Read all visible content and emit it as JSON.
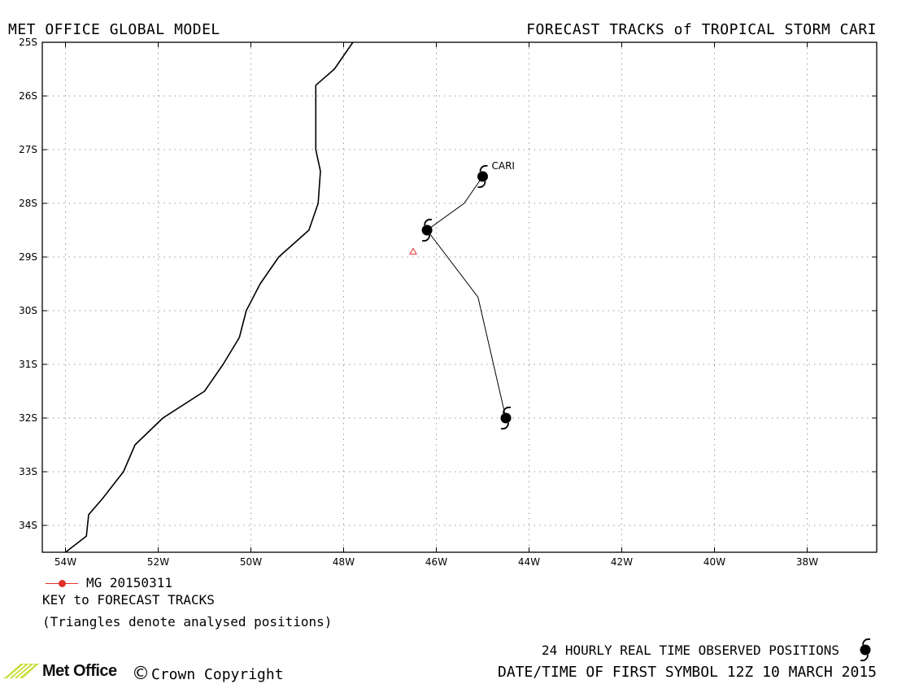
{
  "header": {
    "left": "MET OFFICE GLOBAL MODEL",
    "right": "FORECAST TRACKS of TROPICAL STORM CARI"
  },
  "map": {
    "lon_range": [
      -54.5,
      -36.5
    ],
    "lat_range": [
      -34.5,
      -25.0
    ],
    "lat_ticks": [
      "25S",
      "26S",
      "27S",
      "28S",
      "29S",
      "30S",
      "31S",
      "32S",
      "33S",
      "34S"
    ],
    "lon_ticks": [
      "54W",
      "52W",
      "50W",
      "48W",
      "46W",
      "44W",
      "42W",
      "40W",
      "38W"
    ],
    "grid": true,
    "coastline": [
      [
        -54.0,
        -34.5
      ],
      [
        -53.55,
        -34.2
      ],
      [
        -53.5,
        -33.8
      ],
      [
        -53.2,
        -33.5
      ],
      [
        -52.75,
        -33.0
      ],
      [
        -52.5,
        -32.5
      ],
      [
        -51.9,
        -32.0
      ],
      [
        -51.0,
        -31.5
      ],
      [
        -50.6,
        -31.0
      ],
      [
        -50.25,
        -30.5
      ],
      [
        -50.1,
        -30.0
      ],
      [
        -49.8,
        -29.5
      ],
      [
        -49.4,
        -29.0
      ],
      [
        -48.75,
        -28.5
      ],
      [
        -48.55,
        -28.0
      ],
      [
        -48.5,
        -27.4
      ],
      [
        -48.6,
        -27.0
      ],
      [
        -48.6,
        -25.8
      ],
      [
        -48.2,
        -25.5
      ],
      [
        -47.8,
        -25.0
      ]
    ],
    "storm_label": "CARI",
    "forecast_track": {
      "name": "MG 20150311",
      "color": "#e0302c",
      "points": [
        [
          -45.0,
          -27.5
        ],
        [
          -45.4,
          -28.0
        ],
        [
          -46.2,
          -28.5
        ],
        [
          -45.1,
          -29.75
        ],
        [
          -44.5,
          -32.0
        ]
      ]
    },
    "observed_positions": [
      [
        -45.0,
        -27.5
      ],
      [
        -46.2,
        -28.5
      ],
      [
        -44.5,
        -32.0
      ]
    ],
    "analysed_positions": [
      [
        -46.5,
        -28.9
      ]
    ]
  },
  "legend": {
    "track_label": "MG 20150311",
    "key_title": "KEY to FORECAST TRACKS",
    "triangles_note": "(Triangles denote analysed positions)"
  },
  "footer": {
    "observed_note": "24 HOURLY REAL TIME OBSERVED POSITIONS",
    "first_symbol": "DATE/TIME OF FIRST SYMBOL 12Z 10 MARCH 2015",
    "logo_text": "Met Office",
    "copyright": "Crown Copyright",
    "copyright_symbol": "©"
  }
}
